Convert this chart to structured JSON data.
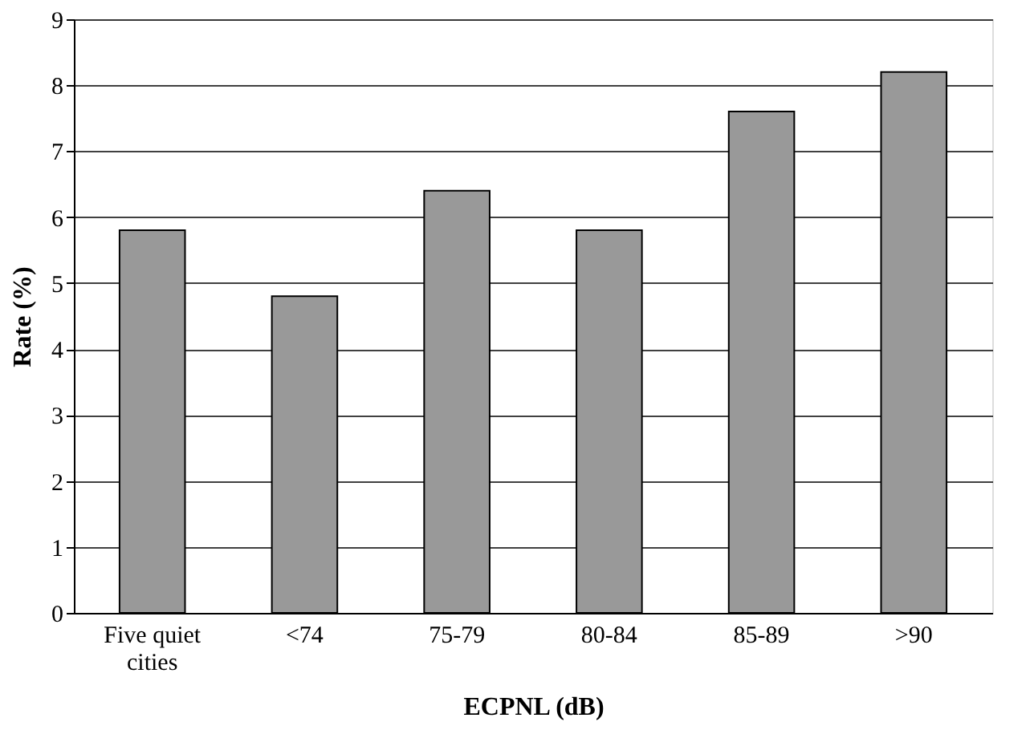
{
  "chart_data": {
    "type": "bar",
    "xlabel": "ECPNL (dB)",
    "ylabel": "Rate (%)",
    "categories": [
      "Five quiet cities",
      "<74",
      "75-79",
      "80-84",
      "85-89",
      ">90"
    ],
    "values": [
      5.8,
      4.8,
      6.4,
      5.8,
      7.6,
      8.2
    ],
    "color": "#999999",
    "ylim": [
      0,
      9
    ],
    "yticks": [
      0,
      1,
      2,
      3,
      4,
      5,
      6,
      7,
      8,
      9
    ],
    "grid": "y"
  }
}
